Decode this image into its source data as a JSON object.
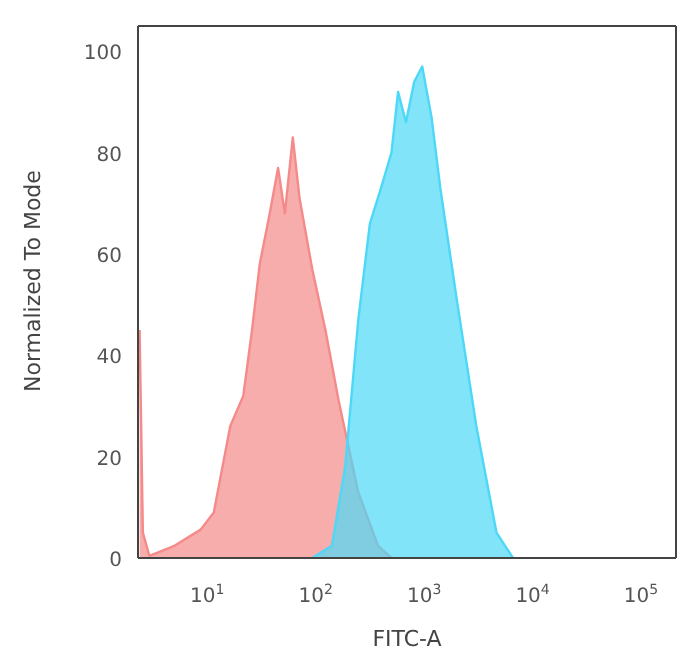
{
  "chart_data": {
    "type": "area",
    "xlabel": "FITC-A",
    "ylabel": "Normalized To Mode",
    "log": "x",
    "xlim": [
      2.3,
      210000
    ],
    "ylim": [
      0,
      105
    ],
    "xticks": [
      {
        "value": 10,
        "label": "10$^{1}$"
      },
      {
        "value": 100,
        "label": "10$^{2}$"
      },
      {
        "value": 1000,
        "label": "10$^{3}$"
      },
      {
        "value": 10000,
        "label": "10$^{4}$"
      },
      {
        "value": 100000,
        "label": "10$^{5}$"
      }
    ],
    "yticks": [
      0,
      20,
      40,
      60,
      80,
      100
    ],
    "series": [
      {
        "color": "#f58a8a",
        "x": [
          2.38,
          2.55,
          2.93,
          4.98,
          8.7,
          11.5,
          16.3,
          21.5,
          25.9,
          30.5,
          37.7,
          45,
          52,
          61.5,
          71,
          93,
          123,
          163,
          247,
          376,
          500
        ],
        "values": [
          45,
          5,
          0.4,
          2.4,
          5.6,
          9,
          26,
          32,
          45,
          58,
          68,
          77,
          68,
          83,
          71,
          57,
          45,
          31,
          13,
          2.4,
          0
        ]
      },
      {
        "color": "#4dd8f7",
        "x": [
          93,
          141,
          187,
          247,
          316,
          400,
          500,
          575,
          680,
          810,
          960,
          1170,
          1410,
          2000,
          3030,
          4650,
          6600
        ],
        "values": [
          0,
          2.4,
          18,
          47,
          66,
          73,
          80,
          92,
          86,
          94,
          97,
          87,
          73,
          51,
          26,
          5,
          0
        ]
      }
    ]
  }
}
